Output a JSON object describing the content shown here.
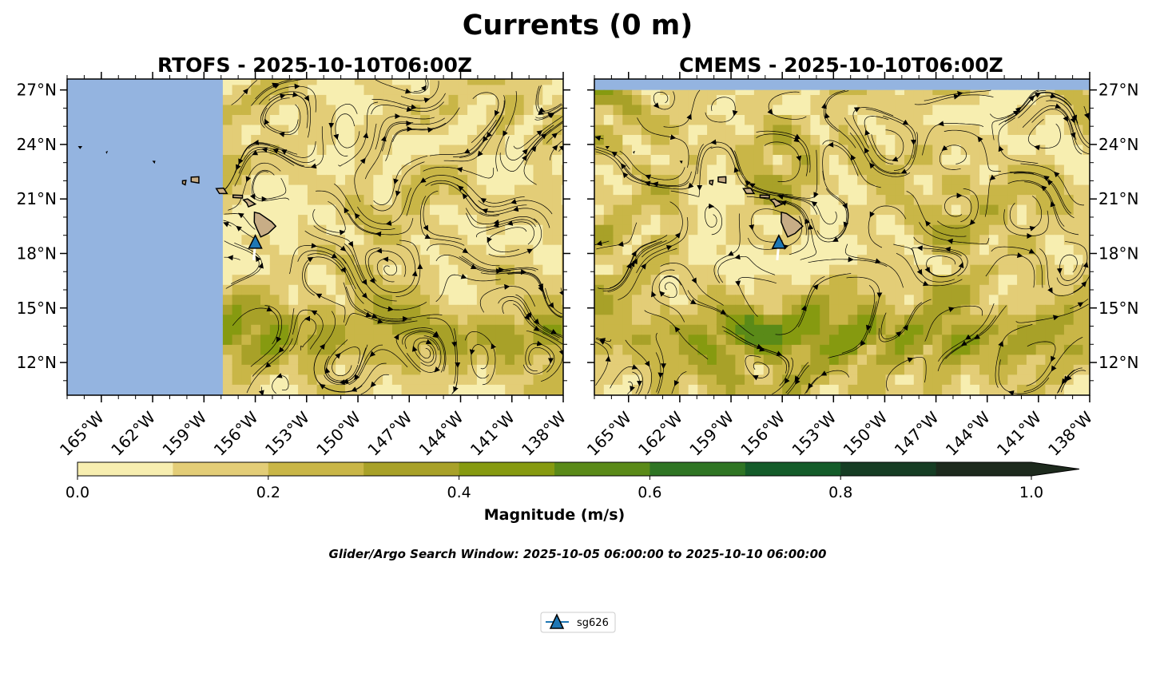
{
  "title": "Currents (0 m)",
  "footnote": "Glider/Argo Search Window: 2025-10-05 06:00:00 to 2025-10-10 06:00:00",
  "legend": {
    "label": "sg626",
    "color": "#1f77b4"
  },
  "colors": {
    "ocean_mask": "#94b4e0",
    "land": "#c8ad86",
    "glider": "#1f77b4"
  },
  "chart_data": [
    {
      "type": "streamplot",
      "title": "RTOFS - 2025-10-10T06:00Z",
      "lon_range": [
        -167,
        -138
      ],
      "lat_range": [
        10.2,
        27.6
      ],
      "xticks": [
        -165,
        -162,
        -159,
        -156,
        -153,
        -150,
        -147,
        -144,
        -141,
        -138
      ],
      "xtick_labels": [
        "165°W",
        "162°W",
        "159°W",
        "156°W",
        "153°W",
        "150°W",
        "147°W",
        "144°W",
        "141°W",
        "138°W"
      ],
      "yticks": [
        12,
        15,
        18,
        21,
        24,
        27
      ],
      "ytick_labels": [
        "12°N",
        "15°N",
        "18°N",
        "21°N",
        "24°N",
        "27°N"
      ],
      "ytick_side": "left",
      "data_lon_min": -157.9,
      "glider": {
        "lon": -156.0,
        "lat": 18.6,
        "label": "sg626"
      }
    },
    {
      "type": "streamplot",
      "title": "CMEMS - 2025-10-10T06:00Z",
      "lon_range": [
        -167,
        -138
      ],
      "lat_range": [
        10.2,
        27.6
      ],
      "xticks": [
        -165,
        -162,
        -159,
        -156,
        -153,
        -150,
        -147,
        -144,
        -141,
        -138
      ],
      "xtick_labels": [
        "165°W",
        "162°W",
        "159°W",
        "156°W",
        "153°W",
        "150°W",
        "147°W",
        "144°W",
        "141°W",
        "138°W"
      ],
      "yticks": [
        12,
        15,
        18,
        21,
        24,
        27
      ],
      "ytick_labels": [
        "12°N",
        "15°N",
        "18°N",
        "21°N",
        "24°N",
        "27°N"
      ],
      "ytick_side": "right",
      "data_lat_max": 27.0,
      "glider": {
        "lon": -156.2,
        "lat": 18.6,
        "label": "sg626"
      }
    }
  ],
  "colorbar": {
    "label": "Magnitude (m/s)",
    "min": 0.0,
    "max": 1.0,
    "ticks": [
      0.0,
      0.2,
      0.4,
      0.6,
      0.8,
      1.0
    ],
    "tick_labels": [
      "0.0",
      "0.2",
      "0.4",
      "0.6",
      "0.8",
      "1.0"
    ],
    "levels": [
      0.0,
      0.1,
      0.2,
      0.3,
      0.4,
      0.5,
      0.6,
      0.7,
      0.8,
      0.9,
      1.0
    ],
    "colors": [
      "#f7eeb0",
      "#e3cd77",
      "#c9b647",
      "#a8a128",
      "#869a10",
      "#5a8a18",
      "#2f7524",
      "#145c2a",
      "#163d24",
      "#1d2a1d"
    ],
    "extend": "max"
  }
}
